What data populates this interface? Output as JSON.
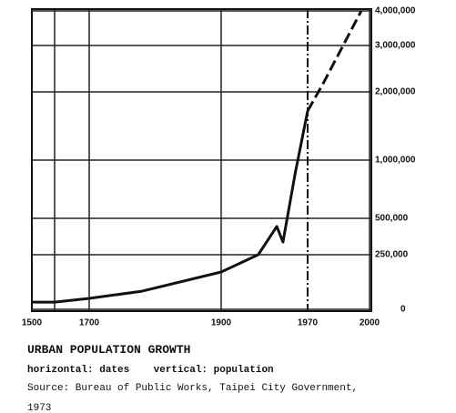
{
  "chart_data": {
    "type": "line",
    "title": "URBAN POPULATION GROWTH",
    "subtitle": "horizontal: dates    vertical: population",
    "source": "Source: Bureau of Public Works, Taipei City Government,",
    "source_year": "1973",
    "series": [
      {
        "x": [
          1500,
          1580,
          1700,
          1780,
          1900,
          1930,
          1945,
          1950,
          1960,
          1970
        ],
        "values": [
          33000,
          33000,
          50000,
          83000,
          171000,
          250000,
          444000,
          337000,
          890000,
          1720000
        ],
        "color": "#111111",
        "dashed": false
      },
      {
        "x": [
          1970,
          1978,
          1996
        ],
        "values": [
          1720000,
          2220000,
          4000000
        ],
        "color": "#111111",
        "dashed": true
      }
    ],
    "xlim": [
      1500,
      2000
    ],
    "xticks": [
      1500,
      1700,
      1900,
      1970,
      2000
    ],
    "ylim": [
      0,
      4000000
    ],
    "yticks": [
      0,
      {
        "value": 250000,
        "label": "250,000"
      },
      {
        "value": 500000,
        "label": "500,000"
      },
      {
        "value": 1000000,
        "label": "1,000,000"
      },
      {
        "value": 2000000,
        "label": "2,000,000"
      },
      {
        "value": 3000000,
        "label": "3,000,000"
      },
      {
        "value": 4000000,
        "label": "4,000,000"
      }
    ],
    "reference_x": 1970,
    "grid": true
  }
}
